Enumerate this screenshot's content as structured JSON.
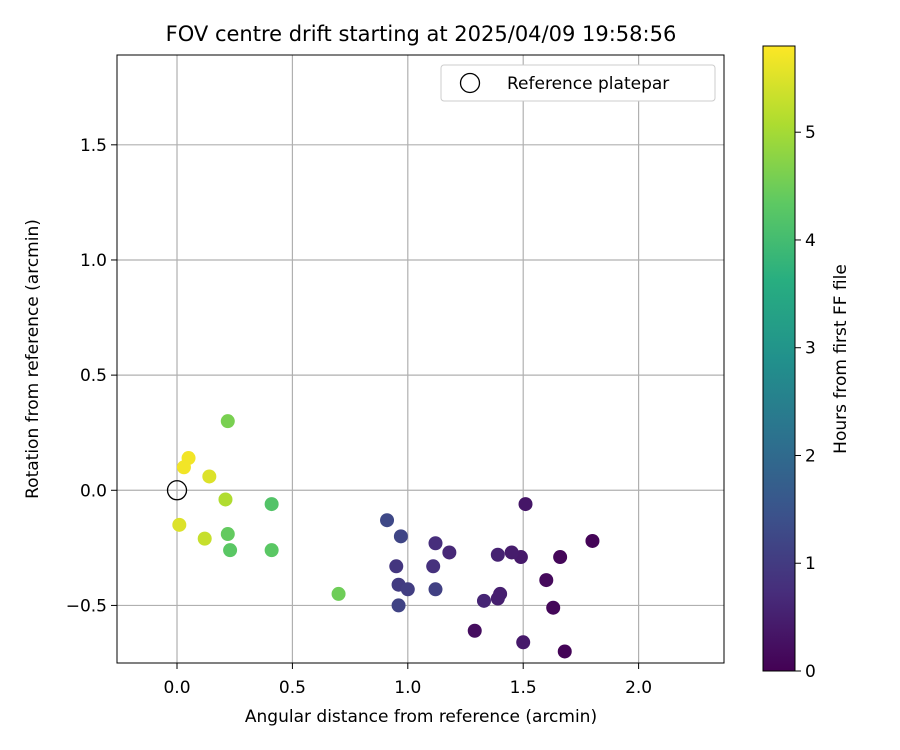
{
  "chart_data": {
    "type": "scatter",
    "title": "FOV centre drift starting at 2025/04/09 19:58:56",
    "xlabel": "Angular distance from reference (arcmin)",
    "ylabel": "Rotation from reference (arcmin)",
    "xlim": [
      -0.26,
      2.37
    ],
    "ylim": [
      -0.75,
      1.89
    ],
    "x_ticks": [
      0.0,
      0.5,
      1.0,
      1.5,
      2.0
    ],
    "x_tick_labels": [
      "0.0",
      "0.5",
      "1.0",
      "1.5",
      "2.0"
    ],
    "y_ticks": [
      -0.5,
      0.0,
      0.5,
      1.0,
      1.5
    ],
    "y_tick_labels": [
      "−0.5",
      "0.0",
      "0.5",
      "1.0",
      "1.5"
    ],
    "grid": true,
    "legend": {
      "placement": "top-right",
      "entries": [
        "Reference platepar"
      ]
    },
    "reference_point": {
      "x": 0.0,
      "y": 0.0,
      "label": "Reference platepar"
    },
    "colorbar": {
      "label": "Hours from first FF file",
      "min": 0,
      "max": 5.8,
      "ticks": [
        0,
        1,
        2,
        3,
        4,
        5
      ],
      "tick_labels": [
        "0",
        "1",
        "2",
        "3",
        "4",
        "5"
      ],
      "colormap": "viridis"
    },
    "points": [
      {
        "x": 1.8,
        "y": -0.22,
        "c": 0.05
      },
      {
        "x": 1.68,
        "y": -0.7,
        "c": 0.05
      },
      {
        "x": 1.66,
        "y": -0.29,
        "c": 0.1
      },
      {
        "x": 1.63,
        "y": -0.51,
        "c": 0.1
      },
      {
        "x": 1.6,
        "y": -0.39,
        "c": 0.15
      },
      {
        "x": 1.29,
        "y": -0.61,
        "c": 0.2
      },
      {
        "x": 1.51,
        "y": -0.06,
        "c": 0.35
      },
      {
        "x": 1.49,
        "y": -0.29,
        "c": 0.4
      },
      {
        "x": 1.5,
        "y": -0.66,
        "c": 0.4
      },
      {
        "x": 1.45,
        "y": -0.27,
        "c": 0.45
      },
      {
        "x": 1.4,
        "y": -0.45,
        "c": 0.5
      },
      {
        "x": 1.39,
        "y": -0.47,
        "c": 0.5
      },
      {
        "x": 1.39,
        "y": -0.28,
        "c": 0.55
      },
      {
        "x": 1.33,
        "y": -0.48,
        "c": 0.6
      },
      {
        "x": 1.18,
        "y": -0.27,
        "c": 0.65
      },
      {
        "x": 1.12,
        "y": -0.23,
        "c": 0.75
      },
      {
        "x": 1.11,
        "y": -0.33,
        "c": 0.8
      },
      {
        "x": 0.95,
        "y": -0.33,
        "c": 0.9
      },
      {
        "x": 0.96,
        "y": -0.41,
        "c": 1.0
      },
      {
        "x": 1.0,
        "y": -0.43,
        "c": 1.05
      },
      {
        "x": 1.12,
        "y": -0.43,
        "c": 1.1
      },
      {
        "x": 0.96,
        "y": -0.5,
        "c": 1.15
      },
      {
        "x": 0.97,
        "y": -0.2,
        "c": 1.2
      },
      {
        "x": 0.91,
        "y": -0.13,
        "c": 1.25
      },
      {
        "x": 0.7,
        "y": -0.45,
        "c": 4.5
      },
      {
        "x": 0.41,
        "y": -0.26,
        "c": 4.3
      },
      {
        "x": 0.41,
        "y": -0.06,
        "c": 4.2
      },
      {
        "x": 0.23,
        "y": -0.26,
        "c": 4.3
      },
      {
        "x": 0.22,
        "y": -0.19,
        "c": 4.4
      },
      {
        "x": 0.22,
        "y": 0.3,
        "c": 4.6
      },
      {
        "x": 0.21,
        "y": -0.04,
        "c": 5.1
      },
      {
        "x": 0.14,
        "y": 0.06,
        "c": 5.5
      },
      {
        "x": 0.12,
        "y": -0.21,
        "c": 5.3
      },
      {
        "x": 0.05,
        "y": 0.14,
        "c": 5.7
      },
      {
        "x": 0.03,
        "y": 0.1,
        "c": 5.7
      },
      {
        "x": 0.01,
        "y": -0.15,
        "c": 5.5
      }
    ]
  }
}
